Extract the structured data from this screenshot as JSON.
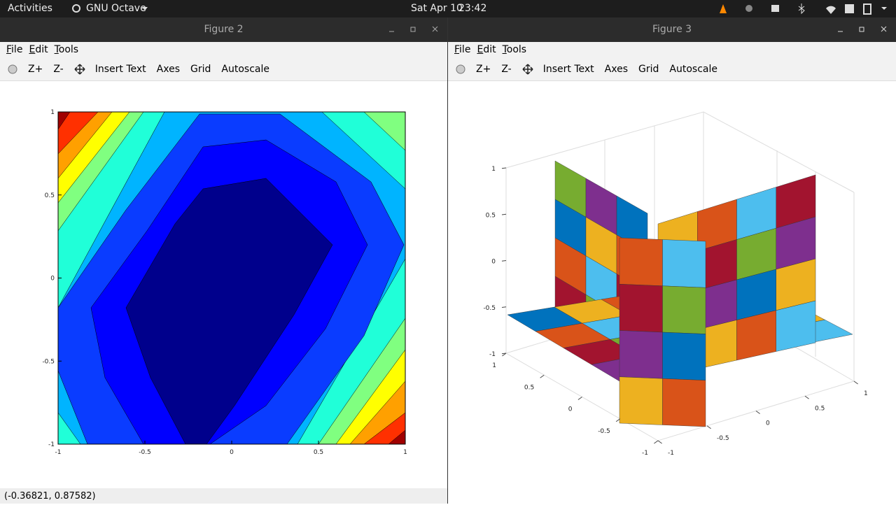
{
  "topbar": {
    "activities": "Activities",
    "app": "GNU Octave",
    "date": "Sat Apr 10",
    "time": "23:42"
  },
  "windows": [
    {
      "title": "Figure 2",
      "menu": [
        "File",
        "Edit",
        "Tools"
      ],
      "toolbar": [
        "Z+",
        "Z-",
        "Insert Text",
        "Axes",
        "Grid",
        "Autoscale"
      ],
      "plot": {
        "xticks": [
          -1,
          -0.5,
          0,
          0.5,
          1
        ],
        "yticks": [
          -1,
          -0.5,
          0,
          0.5,
          1
        ]
      }
    },
    {
      "title": "Figure 3",
      "menu": [
        "File",
        "Edit",
        "Tools"
      ],
      "toolbar": [
        "Z+",
        "Z-",
        "Insert Text",
        "Axes",
        "Grid",
        "Autoscale"
      ],
      "plot": {
        "xticks": [
          1,
          0.5,
          0,
          -0.5,
          -1
        ],
        "yticks": [
          -1,
          -0.5,
          0,
          0.5,
          1
        ],
        "zticks": [
          1,
          0.5,
          0,
          -0.5,
          -1
        ]
      }
    }
  ],
  "status": "(-0.36821, 0.87582)"
}
